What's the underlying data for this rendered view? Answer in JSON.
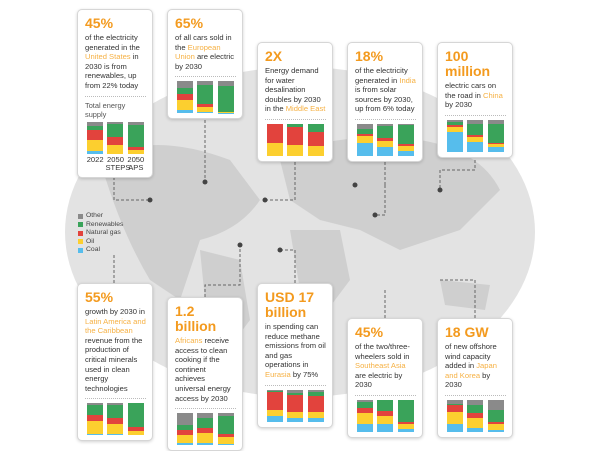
{
  "colors": {
    "coal": "#56bdec",
    "oil": "#fccf2f",
    "natural_gas": "#e2433d",
    "renewables": "#3aa35a",
    "other": "#8a8a8a",
    "accent": "#f39a1e",
    "highlight": "#f6b144",
    "map": "#e3e3e3"
  },
  "legend": [
    {
      "key": "other",
      "label": "Other"
    },
    {
      "key": "renewables",
      "label": "Renewables"
    },
    {
      "key": "natural_gas",
      "label": "Natural gas"
    },
    {
      "key": "oil",
      "label": "Oil"
    },
    {
      "key": "coal",
      "label": "Coal"
    }
  ],
  "segment_order": [
    "coal",
    "oil",
    "natural_gas",
    "renewables",
    "other"
  ],
  "cards": [
    {
      "id": "united-states",
      "big": "45%",
      "pre": "of the electricity generated in the ",
      "hl": "United States",
      "post": " in 2030 is from renewables, up from 22% today",
      "subtitle": "Total energy supply",
      "bar_labels": [
        "2022",
        "2050 STEPS",
        "2050 APS"
      ],
      "bars": [
        [
          8,
          35,
          32,
          10,
          15
        ],
        [
          0,
          28,
          25,
          40,
          7
        ],
        [
          0,
          10,
          10,
          70,
          10
        ]
      ]
    },
    {
      "id": "european-union",
      "big": "65%",
      "pre": "of all cars sold in the ",
      "hl": "European Union",
      "post": " are electric by 2030",
      "bars": [
        [
          12,
          30,
          20,
          18,
          20
        ],
        [
          5,
          15,
          10,
          60,
          10
        ],
        [
          2,
          3,
          0,
          80,
          15
        ]
      ]
    },
    {
      "id": "middle-east",
      "big": "2X",
      "pre": "Energy demand for water desalination doubles by 2030 in the ",
      "hl": "Middle East",
      "post": "",
      "bars": [
        [
          0,
          40,
          60,
          0,
          0
        ],
        [
          0,
          35,
          55,
          10,
          0
        ],
        [
          0,
          30,
          45,
          25,
          0
        ]
      ]
    },
    {
      "id": "india",
      "big": "18%",
      "pre": "of the electricity generated in ",
      "hl": "India",
      "post": " is from solar sources by 2030, up from 6% today",
      "bars": [
        [
          42,
          22,
          5,
          16,
          15
        ],
        [
          28,
          20,
          7,
          38,
          7
        ],
        [
          15,
          15,
          7,
          60,
          3
        ]
      ]
    },
    {
      "id": "china",
      "big": "100 million",
      "pre": "electric cars on the road in ",
      "hl": "China",
      "post": " by 2030",
      "bars": [
        [
          62,
          15,
          7,
          10,
          6
        ],
        [
          30,
          15,
          8,
          35,
          12
        ],
        [
          15,
          8,
          5,
          60,
          12
        ]
      ]
    },
    {
      "id": "latin-america",
      "big": "55%",
      "pre": "growth by 2030 in ",
      "hl": "Latin America and the Caribbean",
      "post": " revenue from the production of critical minerals used in clean energy technologies",
      "bars": [
        [
          5,
          40,
          20,
          30,
          5
        ],
        [
          5,
          30,
          20,
          40,
          5
        ],
        [
          0,
          15,
          12,
          73,
          0
        ]
      ]
    },
    {
      "id": "africa",
      "big": "1.2 billion",
      "pre": "",
      "hl": "Africans",
      "post": " receive access to clean cooking if the continent achieves universal energy access by 2030",
      "bars": [
        [
          8,
          25,
          15,
          15,
          37
        ],
        [
          8,
          30,
          17,
          30,
          15
        ],
        [
          5,
          20,
          10,
          55,
          10
        ]
      ]
    },
    {
      "id": "eurasia",
      "big": "USD 17 billion",
      "pre": "in spending can reduce methane emissions from oil and gas operations in ",
      "hl": "Eurasia",
      "post": " by 75%",
      "bars": [
        [
          17,
          20,
          55,
          3,
          5
        ],
        [
          10,
          20,
          52,
          8,
          10
        ],
        [
          10,
          20,
          50,
          12,
          8
        ]
      ]
    },
    {
      "id": "southeast-asia",
      "big": "45%",
      "pre": "of the two/three-wheelers sold in ",
      "hl": "Southeast Asia",
      "post": " are electric by 2030",
      "bars": [
        [
          25,
          33,
          17,
          20,
          5
        ],
        [
          25,
          25,
          15,
          35,
          0
        ],
        [
          10,
          15,
          7,
          68,
          0
        ]
      ]
    },
    {
      "id": "japan-korea",
      "big": "18 GW",
      "pre": "of new offshore wind capacity added in ",
      "hl": "Japan and Korea",
      "post": " by 2030",
      "bars": [
        [
          25,
          38,
          20,
          5,
          12
        ],
        [
          12,
          33,
          15,
          25,
          15
        ],
        [
          7,
          18,
          5,
          40,
          30
        ]
      ]
    }
  ]
}
